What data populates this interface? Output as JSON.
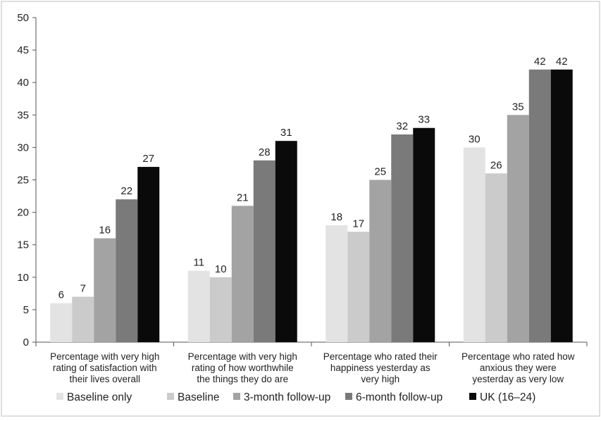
{
  "chart_data": {
    "type": "bar",
    "title": "",
    "xlabel": "",
    "ylabel": "",
    "ylim": [
      0,
      50
    ],
    "yticks": [
      0,
      5,
      10,
      15,
      20,
      25,
      30,
      35,
      40,
      45,
      50
    ],
    "grid": false,
    "legend_position": "bottom",
    "categories": [
      [
        "Percentage with very high",
        "rating of satisfaction with",
        "their lives overall"
      ],
      [
        "Percentage with very high",
        "rating of how worthwhile",
        "the things they do are"
      ],
      [
        "Percentage who rated their",
        "happiness yesterday as",
        "very high"
      ],
      [
        "Percentage who rated how",
        "anxious they were",
        "yesterday as very low"
      ]
    ],
    "series": [
      {
        "name": "Baseline only",
        "color": "#e3e3e3",
        "values": [
          6,
          11,
          18,
          30
        ]
      },
      {
        "name": "Baseline",
        "color": "#cbcbcb",
        "values": [
          7,
          10,
          17,
          26
        ]
      },
      {
        "name": "3-month follow-up",
        "color": "#a3a3a3",
        "values": [
          16,
          21,
          25,
          35
        ]
      },
      {
        "name": "6-month follow-up",
        "color": "#7a7a7a",
        "values": [
          22,
          28,
          32,
          42
        ]
      },
      {
        "name": "UK (16–24)",
        "color": "#0a0a0a",
        "values": [
          27,
          31,
          33,
          42
        ]
      }
    ]
  }
}
